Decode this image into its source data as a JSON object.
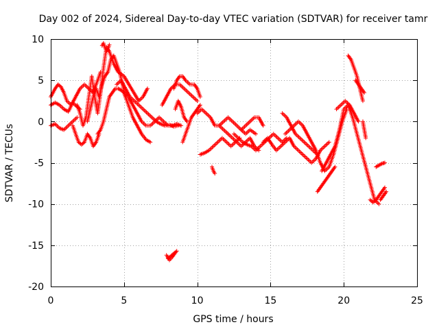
{
  "chart_data": {
    "type": "scatter",
    "title": "Day 002 of 2024, Sidereal Day-to-day VTEC variation (SDTVAR) for receiver tamr",
    "xlabel": "GPS time / hours",
    "ylabel": "SDTVAR / TECUs",
    "xlim": [
      0,
      25
    ],
    "ylim": [
      -20,
      10
    ],
    "xticks": [
      0,
      5,
      10,
      15,
      20,
      25
    ],
    "yticks": [
      -20,
      -15,
      -10,
      -5,
      0,
      5,
      10
    ],
    "grid": true,
    "marker": "+",
    "series": [
      {
        "name": "SDTVAR",
        "color": "#ff0000",
        "tracks": [
          {
            "x": [
              0,
              0.3,
              0.6,
              0.9,
              1.2,
              1.5,
              1.8,
              2.0
            ],
            "y": [
              2.0,
              2.3,
              2.0,
              1.5,
              1.2,
              2.3,
              1.8,
              1.5
            ]
          },
          {
            "x": [
              0,
              0.3,
              0.5,
              0.7,
              0.9,
              1.1,
              1.4,
              1.7,
              2.0,
              2.3,
              2.6,
              2.9,
              3.2,
              3.4
            ],
            "y": [
              3.0,
              4.0,
              4.5,
              4.2,
              3.5,
              2.5,
              2.0,
              3.0,
              4.0,
              4.5,
              4.0,
              3.5,
              5.0,
              6.0
            ]
          },
          {
            "x": [
              0,
              0.3,
              0.6,
              0.9,
              1.2,
              1.5,
              1.8
            ],
            "y": [
              -0.5,
              -0.3,
              -0.8,
              -1.0,
              -0.5,
              0.0,
              0.5
            ]
          },
          {
            "x": [
              1.5,
              1.7,
              1.9,
              2.1,
              2.3,
              2.5,
              2.7,
              2.9,
              3.1,
              3.3
            ],
            "y": [
              -0.5,
              -1.5,
              -2.5,
              -2.8,
              -2.5,
              -1.5,
              -2.0,
              -3.0,
              -2.5,
              -1.5
            ]
          },
          {
            "x": [
              1.8,
              2.0,
              2.2,
              2.4,
              2.6,
              2.8,
              3.0,
              3.2,
              3.4,
              3.6,
              3.8,
              4.0,
              4.3,
              4.6,
              5.0,
              5.5,
              6.0,
              6.3,
              6.6
            ],
            "y": [
              2.0,
              1.0,
              -0.5,
              0.5,
              3.0,
              5.5,
              3.0,
              1.0,
              3.5,
              6.5,
              9.0,
              8.5,
              7.0,
              6.0,
              5.5,
              4.0,
              2.5,
              3.0,
              4.0
            ]
          },
          {
            "x": [
              2.5,
              2.7,
              2.9,
              3.1,
              3.3,
              3.5,
              3.7,
              3.9,
              4.1,
              4.3,
              4.5,
              4.7,
              4.9,
              5.1
            ],
            "y": [
              0.0,
              1.5,
              3.0,
              4.0,
              3.0,
              4.5,
              5.5,
              6.0,
              7.5,
              8.0,
              7.0,
              6.0,
              4.5,
              3.0
            ]
          },
          {
            "x": [
              3.5,
              3.6,
              3.7,
              3.8,
              3.9,
              4.0
            ],
            "y": [
              9.2,
              9.5,
              9.0,
              8.5,
              8.8,
              9.3
            ]
          },
          {
            "x": [
              3.2,
              3.4,
              3.6,
              3.8,
              4.0,
              4.2,
              4.4,
              4.6,
              4.8,
              5.0,
              5.3,
              5.6,
              5.9,
              6.2,
              6.5,
              6.8,
              7.1,
              7.4,
              7.7,
              8.0,
              8.3,
              8.6,
              8.9
            ],
            "y": [
              -1.5,
              -1.0,
              0.0,
              1.5,
              3.0,
              3.5,
              4.0,
              4.0,
              3.8,
              3.5,
              3.0,
              2.0,
              1.0,
              0.0,
              -0.5,
              -0.5,
              0.0,
              0.5,
              0.0,
              -0.5,
              -0.5,
              -0.3,
              -0.5
            ]
          },
          {
            "x": [
              5.0,
              5.3,
              5.6,
              5.9,
              6.2,
              6.5,
              6.8
            ],
            "y": [
              3.5,
              2.0,
              0.5,
              -0.5,
              -1.5,
              -2.2,
              -2.5
            ]
          },
          {
            "x": [
              4.5,
              4.8,
              5.1,
              5.4,
              5.7,
              6.0,
              6.3,
              6.6,
              6.9,
              7.2,
              7.5,
              7.8,
              8.1,
              8.4,
              8.7
            ],
            "y": [
              4.5,
              5.0,
              4.0,
              3.0,
              2.5,
              2.0,
              1.5,
              1.0,
              0.5,
              0.0,
              -0.3,
              -0.5,
              -0.4,
              -0.6,
              -0.5
            ]
          },
          {
            "x": [
              8.0,
              8.2,
              8.4,
              8.6
            ],
            "y": [
              -16.6,
              -16.3,
              -16.0,
              -15.7
            ]
          },
          {
            "x": [
              7.9,
              8.1,
              8.3,
              8.5
            ],
            "y": [
              -16.2,
              -16.8,
              -16.4,
              -15.9
            ]
          },
          {
            "x": [
              8.5,
              8.7,
              8.9,
              9.1,
              9.3
            ],
            "y": [
              1.5,
              2.5,
              1.8,
              0.5,
              0.0
            ]
          },
          {
            "x": [
              9.0,
              9.2,
              9.4,
              9.6,
              9.8,
              10.0,
              10.2
            ],
            "y": [
              -2.5,
              -1.5,
              -0.5,
              0.5,
              1.0,
              1.5,
              2.0
            ]
          },
          {
            "x": [
              8.4,
              8.6,
              8.8,
              9.0,
              9.2,
              9.5,
              9.8,
              10.0,
              10.2
            ],
            "y": [
              4.0,
              5.0,
              5.5,
              5.5,
              5.0,
              4.5,
              4.5,
              4.0,
              3.0
            ]
          },
          {
            "x": [
              7.6,
              7.9,
              8.2,
              8.5,
              8.8,
              9.1,
              9.4,
              9.7,
              10.0
            ],
            "y": [
              2.0,
              3.0,
              4.0,
              4.5,
              4.5,
              4.0,
              3.5,
              3.0,
              2.5
            ]
          },
          {
            "x": [
              10.0,
              10.3,
              10.6,
              10.9,
              11.2,
              11.5,
              11.8,
              12.1,
              12.4,
              12.7,
              13.0,
              13.3,
              13.6,
              14.0
            ],
            "y": [
              1.0,
              1.5,
              1.0,
              0.5,
              -0.5,
              -0.5,
              0.0,
              0.5,
              0.0,
              -0.5,
              -1.0,
              -1.5,
              -1.0,
              -1.5
            ]
          },
          {
            "x": [
              10.2,
              10.5,
              10.8,
              11.1,
              11.4,
              11.7,
              12.0,
              12.3,
              12.6,
              12.9
            ],
            "y": [
              -4.0,
              -3.8,
              -3.5,
              -3.0,
              -2.5,
              -2.0,
              -2.5,
              -3.0,
              -2.5,
              -2.0
            ]
          },
          {
            "x": [
              11.0,
              11.1,
              11.2
            ],
            "y": [
              -5.5,
              -6.0,
              -6.3
            ]
          },
          {
            "x": [
              11.5,
              11.8,
              12.1,
              12.4,
              12.7,
              13.0,
              13.3,
              13.6,
              13.9,
              14.2
            ],
            "y": [
              -0.5,
              -1.0,
              -1.5,
              -2.0,
              -2.5,
              -3.0,
              -2.5,
              -2.0,
              -3.0,
              -3.5
            ]
          },
          {
            "x": [
              12.5,
              12.8,
              13.1,
              13.4,
              13.7,
              14.0,
              14.3,
              14.6,
              14.9,
              15.2,
              15.5,
              15.8,
              16.1
            ],
            "y": [
              -1.5,
              -2.0,
              -2.5,
              -2.8,
              -3.0,
              -3.5,
              -3.0,
              -2.5,
              -2.0,
              -1.5,
              -2.0,
              -2.5,
              -2.0
            ]
          },
          {
            "x": [
              13.0,
              13.3,
              13.6,
              13.9,
              14.2,
              14.5
            ],
            "y": [
              -1.0,
              -0.5,
              0.0,
              0.5,
              0.5,
              -0.5
            ]
          },
          {
            "x": [
              14.5,
              14.8,
              15.1,
              15.4,
              15.7,
              16.0,
              16.3,
              16.6,
              16.9,
              17.2,
              17.5,
              17.8,
              18.1,
              18.4,
              18.7,
              19.0
            ],
            "y": [
              -2.5,
              -2.0,
              -2.8,
              -3.5,
              -3.0,
              -2.5,
              -2.0,
              -3.0,
              -3.5,
              -4.0,
              -4.5,
              -5.0,
              -4.5,
              -3.5,
              -3.0,
              -2.5
            ]
          },
          {
            "x": [
              15.8,
              16.1,
              16.4,
              16.7,
              17.0,
              17.3,
              17.6,
              17.9,
              18.2
            ],
            "y": [
              1.0,
              0.5,
              -0.5,
              -1.5,
              -2.0,
              -2.5,
              -3.0,
              -3.5,
              -4.0
            ]
          },
          {
            "x": [
              16.0,
              16.3,
              16.6,
              16.9,
              17.2,
              17.5,
              17.8,
              18.1,
              18.4,
              18.7,
              19.0,
              19.3,
              19.6,
              19.9,
              20.2
            ],
            "y": [
              -1.5,
              -1.0,
              -0.5,
              0.0,
              -0.5,
              -1.5,
              -2.5,
              -3.5,
              -5.0,
              -6.0,
              -5.5,
              -4.0,
              -2.0,
              0.0,
              1.5
            ]
          },
          {
            "x": [
              18.2,
              18.4,
              18.6,
              18.8,
              19.0,
              19.2,
              19.4
            ],
            "y": [
              -8.5,
              -8.0,
              -7.5,
              -7.0,
              -6.5,
              -6.0,
              -5.5
            ]
          },
          {
            "x": [
              18.5,
              18.8,
              19.1,
              19.4,
              19.7,
              20.0,
              20.3,
              20.6,
              20.9,
              21.2,
              21.5,
              21.8,
              22.1,
              22.4
            ],
            "y": [
              -6.0,
              -5.0,
              -4.0,
              -3.0,
              -1.0,
              1.5,
              2.0,
              0.5,
              -1.5,
              -3.5,
              -5.5,
              -7.5,
              -9.5,
              -10.0
            ]
          },
          {
            "x": [
              19.5,
              19.8,
              20.1,
              20.4,
              20.7,
              21.0
            ],
            "y": [
              1.5,
              2.0,
              2.5,
              2.0,
              1.0,
              0.0
            ]
          },
          {
            "x": [
              20.3,
              20.5,
              20.7,
              20.9,
              21.1,
              21.3
            ],
            "y": [
              8.0,
              7.5,
              6.5,
              5.5,
              4.0,
              2.5
            ]
          },
          {
            "x": [
              20.8,
              21.0,
              21.2,
              21.4
            ],
            "y": [
              5.0,
              4.5,
              4.0,
              3.5
            ]
          },
          {
            "x": [
              21.3,
              21.4,
              21.5
            ],
            "y": [
              0.0,
              -1.0,
              -2.0
            ]
          },
          {
            "x": [
              21.8,
              22.0,
              22.2,
              22.4,
              22.6,
              22.8
            ],
            "y": [
              -9.5,
              -9.8,
              -9.5,
              -9.0,
              -8.5,
              -8.0
            ]
          },
          {
            "x": [
              22.2,
              22.4,
              22.6,
              22.8
            ],
            "y": [
              -5.5,
              -5.3,
              -5.1,
              -5.0
            ]
          },
          {
            "x": [
              22.5,
              22.7,
              22.9
            ],
            "y": [
              -9.5,
              -9.0,
              -8.5
            ]
          }
        ]
      }
    ]
  }
}
